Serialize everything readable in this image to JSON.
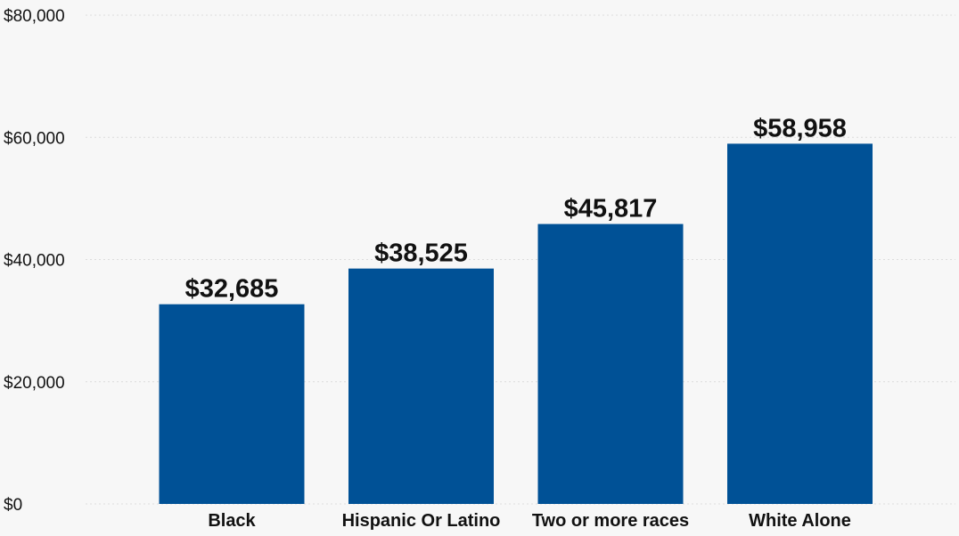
{
  "chart_data": {
    "type": "bar",
    "title": "",
    "xlabel": "",
    "ylabel": "",
    "categories": [
      "Black",
      "Hispanic Or Latino",
      "Two or more races",
      "White Alone"
    ],
    "values": [
      32685,
      38525,
      45817,
      58958
    ],
    "data_labels": [
      "$32,685",
      "$38,525",
      "$45,817",
      "$58,958"
    ],
    "ylim": [
      0,
      80000
    ],
    "yticks": [
      0,
      20000,
      40000,
      60000,
      80000
    ],
    "ytick_labels": [
      "$0",
      "$20,000",
      "$40,000",
      "$60,000",
      "$80,000"
    ],
    "grid": true,
    "legend": "none",
    "bar_color": "#005196"
  }
}
